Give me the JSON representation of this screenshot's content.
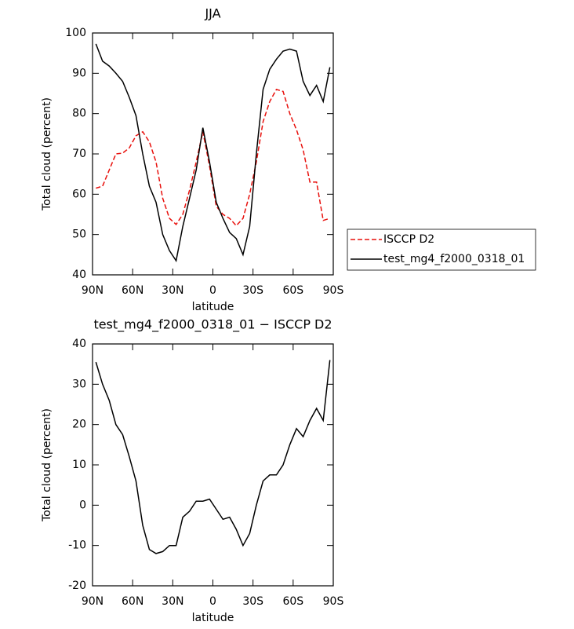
{
  "chart_data": [
    {
      "type": "line",
      "title": "JJA",
      "xlabel": "latitude",
      "ylabel": "Total cloud (percent)",
      "x": [
        87.5,
        82.5,
        77.5,
        72.5,
        67.5,
        62.5,
        57.5,
        52.5,
        47.5,
        42.5,
        37.5,
        32.5,
        27.5,
        22.5,
        17.5,
        12.5,
        7.5,
        2.5,
        -2.5,
        -7.5,
        -12.5,
        -17.5,
        -22.5,
        -27.5,
        -32.5,
        -37.5,
        -42.5,
        -47.5,
        -52.5,
        -57.5,
        -62.5,
        -67.5,
        -72.5,
        -77.5,
        -82.5,
        -87.5
      ],
      "series": [
        {
          "name": "ISCCP D2",
          "color": "#e8100c",
          "linestyle": "dashed",
          "values": [
            61.5,
            62,
            66,
            70,
            70.2,
            71.5,
            74.5,
            75.5,
            73,
            68,
            59,
            54,
            52.5,
            55,
            61,
            68,
            75.5,
            67,
            57,
            55,
            54,
            52.2,
            54,
            60,
            68,
            78,
            83,
            86,
            85.5,
            80,
            76,
            71,
            63,
            63,
            53.5,
            54
          ]
        },
        {
          "name": "test_mg4_f2000_0318_01",
          "color": "#000000",
          "linestyle": "solid",
          "values": [
            97.3,
            93,
            91.8,
            90,
            88,
            84,
            79.5,
            70,
            62,
            58,
            50,
            46,
            43.5,
            52,
            59,
            66,
            76.5,
            68,
            58,
            54,
            50.5,
            49,
            45,
            52,
            70,
            86,
            91,
            93.5,
            95.5,
            96,
            95.5,
            88,
            84.5,
            87,
            83,
            91.5
          ]
        }
      ],
      "xlim": [
        90,
        -90
      ],
      "xticks": [
        {
          "value": 90,
          "label": "90N"
        },
        {
          "value": 60,
          "label": "60N"
        },
        {
          "value": 30,
          "label": "30N"
        },
        0,
        {
          "value": -30,
          "label": "30S"
        },
        {
          "value": -60,
          "label": "60S"
        },
        {
          "value": -90,
          "label": "90S"
        }
      ],
      "ylim": [
        40,
        100
      ],
      "yticks": [
        40,
        50,
        60,
        70,
        80,
        90,
        100
      ],
      "legend": "right"
    },
    {
      "type": "line",
      "title": "test_mg4_f2000_0318_01 − ISCCP D2",
      "xlabel": "latitude",
      "ylabel": "Total cloud (percent)",
      "x": [
        87.5,
        82.5,
        77.5,
        72.5,
        67.5,
        62.5,
        57.5,
        52.5,
        47.5,
        42.5,
        37.5,
        32.5,
        27.5,
        22.5,
        17.5,
        12.5,
        7.5,
        2.5,
        -2.5,
        -7.5,
        -12.5,
        -17.5,
        -22.5,
        -27.5,
        -32.5,
        -37.5,
        -42.5,
        -47.5,
        -52.5,
        -57.5,
        -62.5,
        -67.5,
        -72.5,
        -77.5,
        -82.5,
        -87.5
      ],
      "series": [
        {
          "color": "#000000",
          "linestyle": "solid",
          "values": [
            35.5,
            30,
            26,
            20,
            17.5,
            12,
            6,
            -5,
            -11,
            -12,
            -11.5,
            -10,
            -10,
            -3,
            -1.5,
            1,
            1,
            1.5,
            -1,
            -3.5,
            -3,
            -6,
            -10,
            -7,
            0,
            6,
            7.5,
            7.5,
            10,
            15,
            19,
            17,
            21,
            24,
            21,
            36
          ]
        }
      ],
      "xlim": [
        90,
        -90
      ],
      "xticks": [
        {
          "value": 90,
          "label": "90N"
        },
        {
          "value": 60,
          "label": "60N"
        },
        {
          "value": 30,
          "label": "30N"
        },
        0,
        {
          "value": -30,
          "label": "30S"
        },
        {
          "value": -60,
          "label": "60S"
        },
        {
          "value": -90,
          "label": "90S"
        }
      ],
      "ylim": [
        -20,
        40
      ],
      "yticks": [
        -20,
        -10,
        0,
        10,
        20,
        30,
        40
      ]
    }
  ]
}
